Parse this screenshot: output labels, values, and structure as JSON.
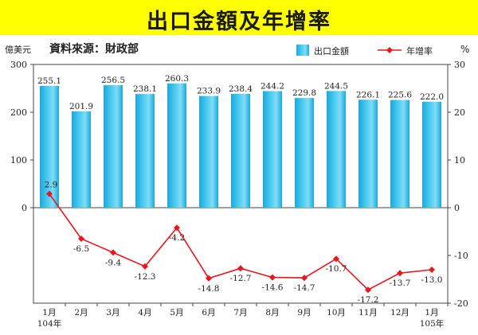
{
  "title": "出口金額及年增率",
  "source": "資料來源：財政部",
  "left_unit": "億美元",
  "right_unit": "%",
  "colors": {
    "bar": "#45c6ef",
    "bar_edge": "#1aa9d8",
    "line": "#e8161e",
    "title_bg": "#ffff00"
  },
  "chart_data": {
    "type": "bar+line",
    "categories": [
      "1月",
      "2月",
      "3月",
      "4月",
      "5月",
      "6月",
      "7月",
      "8月",
      "9月",
      "10月",
      "11月",
      "12月",
      "1月"
    ],
    "category_sublabels": [
      "104年",
      "",
      "",
      "",
      "",
      "",
      "",
      "",
      "",
      "",
      "",
      "",
      "105年"
    ],
    "series": [
      {
        "name": "出口金額",
        "type": "bar",
        "axis": "left",
        "values": [
          255.1,
          201.9,
          256.5,
          238.1,
          260.3,
          233.9,
          238.4,
          244.2,
          229.8,
          244.5,
          226.1,
          225.6,
          222.0
        ],
        "labels": [
          "255.1",
          "201.9",
          "256.5",
          "238.1",
          "260.3",
          "233.9",
          "238.4",
          "244.2",
          "229.8",
          "244.5",
          "226.1",
          "225.6",
          "222.0"
        ]
      },
      {
        "name": "年增率",
        "type": "line",
        "axis": "right",
        "values": [
          2.9,
          -6.5,
          -9.4,
          -12.3,
          -4.2,
          -14.8,
          -12.7,
          -14.6,
          -14.7,
          -10.7,
          -17.2,
          -13.7,
          -13.0
        ],
        "labels": [
          "2.9",
          "-6.5",
          "-9.4",
          "-12.3",
          "-4.2",
          "-14.8",
          "-12.7",
          "-14.6",
          "-14.7",
          "-10.7",
          "-17.2",
          "-13.7",
          "-13.0"
        ]
      }
    ],
    "left_axis": {
      "ticks": [
        "300",
        "200",
        "100",
        "0"
      ]
    },
    "right_axis": {
      "min": -20,
      "max": 30,
      "ticks": [
        "30",
        "20",
        "10",
        "0",
        "-10",
        "-20"
      ]
    },
    "legend": [
      "出口金額",
      "年增率"
    ],
    "legend_position": "top-right",
    "grid": false
  }
}
